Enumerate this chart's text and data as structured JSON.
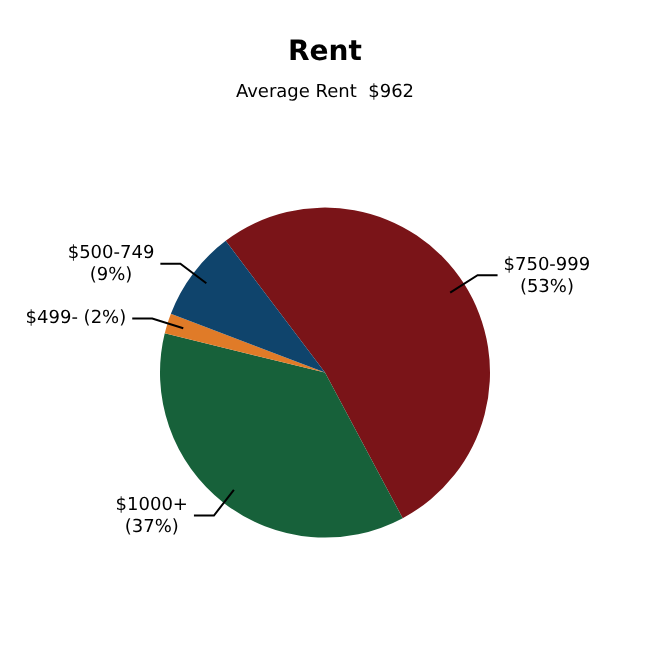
{
  "chart_data": {
    "type": "pie",
    "title": "Rent",
    "subtitle": "Average Rent  $962",
    "categories": [
      "$750-999",
      "$1000+",
      "$499-",
      "$500-749"
    ],
    "values": [
      53,
      37,
      2,
      9
    ],
    "value_labels": [
      "(53%)",
      "(37%)",
      "(2%)",
      "(9%)"
    ],
    "colors": [
      "#7a1418",
      "#17613a",
      "#e07b28",
      "#0f446c"
    ],
    "legend": false
  }
}
